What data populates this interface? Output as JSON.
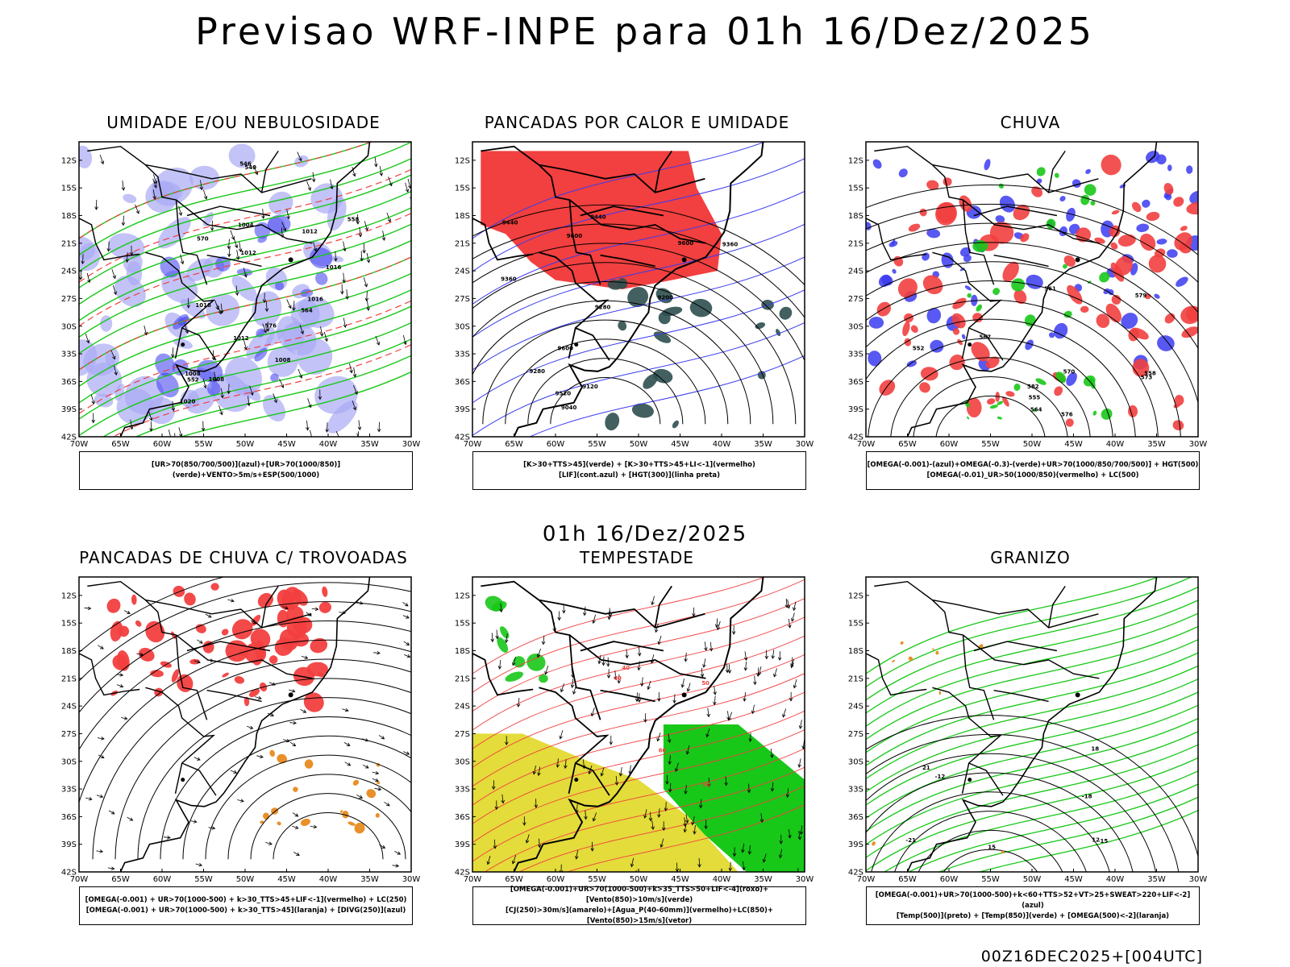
{
  "header": {
    "title": "Previsao WRF-INPE  para 01h 16/Dez/2025"
  },
  "section_time": "01h 16/Dez/2025",
  "footer": "00Z16DEC2025+[004UTC]",
  "axes": {
    "lat_ticks": [
      "12S",
      "15S",
      "18S",
      "21S",
      "24S",
      "27S",
      "30S",
      "33S",
      "36S",
      "39S",
      "42S"
    ],
    "lon_ticks": [
      "70W",
      "65W",
      "60W",
      "55W",
      "50W",
      "45W",
      "40W",
      "35W",
      "30W"
    ]
  },
  "colors": {
    "blue": "#3b3bf0",
    "lightblue": "#a9a9f5",
    "green": "#18c818",
    "red": "#f23f3f",
    "darkteal": "#2f4f4f",
    "yellow": "#e3dc3a",
    "orange": "#e88a1e"
  },
  "panels": [
    {
      "id": "umidade",
      "title": "UMIDADE E/OU NEBULOSIDADE",
      "caption": [
        "[UR>70(850/700/500)](azul)+[UR>70(1000/850)](verde)+VENTO>5m/s+ESP(500/1000)"
      ],
      "contour_labels": [
        "1012",
        "1016",
        "1008",
        "1012",
        "1016",
        "1008",
        "1008",
        "1012",
        "1020",
        "1016",
        "1004",
        "576",
        "570",
        "564",
        "558",
        "552",
        "546",
        "540"
      ]
    },
    {
      "id": "pancadas-calor",
      "title": "PANCADAS POR CALOR E UMIDADE",
      "caption": [
        "[K>30+TTS>45](verde) + [K>30+TTS>45+LI<-1](vermelho)",
        "[LIF](cont.azul) + [HGT(300)](linha preta)"
      ],
      "contour_labels": [
        "9600",
        "9520",
        "9600",
        "9440",
        "9360",
        "9280",
        "9200",
        "9120",
        "9040",
        "9600",
        "9360",
        "9440",
        "9280"
      ]
    },
    {
      "id": "chuva",
      "title": "CHUVA",
      "caption": [
        "[OMEGA(-0.001)-(azul)+OMEGA(-0.3)-(verde)+UR>70(1000/850/700/500)] + HGT(500)",
        "[OMEGA(-0.01)_UR>50(1000/850)(vermelho) + LC(500)"
      ],
      "contour_labels": [
        "582",
        "579",
        "576",
        "573",
        "570",
        "567",
        "564",
        "561",
        "558",
        "555",
        "552"
      ]
    },
    {
      "id": "pancadas-trovoadas",
      "title": "PANCADAS DE CHUVA C/ TROVOADAS",
      "caption": [
        "[OMEGA(-0.001) + UR>70(1000-500) + k>30_TTS>45+LIF<-1](vermelho) + LC(250)",
        "[OMEGA(-0.001) + UR>70(1000-500) + k>30_TTS>45](laranja) + [DIVG(250)](azul)"
      ],
      "contour_labels": []
    },
    {
      "id": "tempestade",
      "title": "TEMPESTADE",
      "caption": [
        "[OMEGA(-0.001)+UR>70(1000-500)+k>35_TTS>50+LIF<-4](roxo)+[Vento(850)>10m/s](verde)",
        "[CJ(250)>30m/s](amarelo)+[Agua_P(40-60mm)](vermelho)+LC(850)+[Vento(850)>15m/s](vetor)"
      ],
      "contour_labels": [
        "40",
        "50",
        "60",
        "40",
        "50"
      ]
    },
    {
      "id": "granizo",
      "title": "GRANIZO",
      "caption": [
        "[OMEGA(-0.001)+UR>70(1000-500)+k<60+TTS>52+VT>25+SWEAT>220+LIF<-2](azul)",
        "[Temp(500)](preto) + [Temp(850)](verde) + [OMEGA(500)<-2](laranja)"
      ],
      "contour_labels": [
        "-12",
        "-15",
        "-18",
        "-21",
        "15",
        "18",
        "21",
        "12"
      ]
    }
  ]
}
